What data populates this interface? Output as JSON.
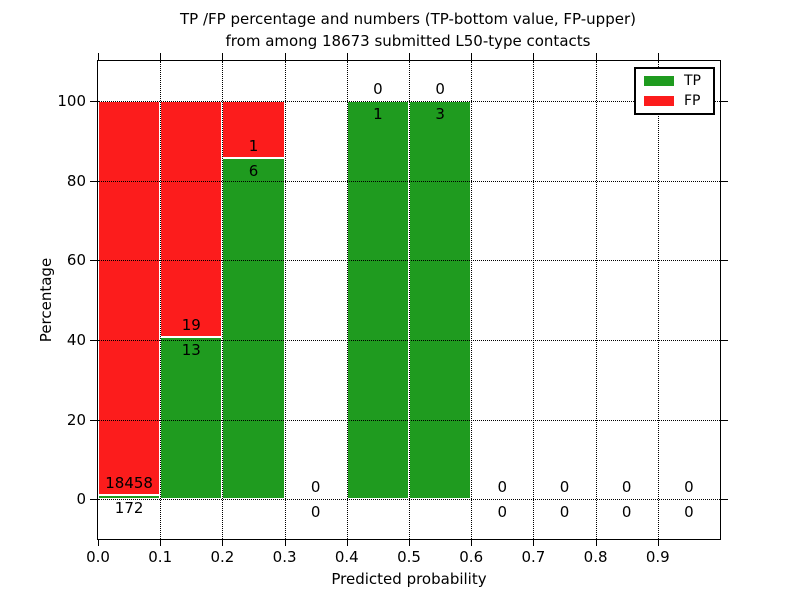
{
  "title": {
    "line1": "TP /FP percentage and numbers (TP-bottom value, FP-upper)",
    "line2": "from among 18673 submitted L50-type contacts"
  },
  "colors": {
    "tp": "#1f9b1f",
    "fp": "#fc1c1c",
    "grid": "#000000",
    "frame": "#000000",
    "background": "#ffffff"
  },
  "chart_data": {
    "type": "bar",
    "stacked": true,
    "normalized": "each non-empty bin stacked to 100%",
    "title": "TP /FP percentage and numbers (TP-bottom value, FP-upper) from among 18673 submitted L50-type contacts",
    "total_contacts": 18673,
    "xlabel": "Predicted probability",
    "ylabel": "Percentage",
    "xlim": [
      0.0,
      1.0
    ],
    "ylim": [
      -10,
      110
    ],
    "xticks": [
      0.0,
      0.1,
      0.2,
      0.3,
      0.4,
      0.5,
      0.6,
      0.7,
      0.8,
      0.9
    ],
    "yticks": [
      0,
      20,
      40,
      60,
      80,
      100
    ],
    "grid": "dotted, both axes, drawn over bars",
    "legend_position": "upper right",
    "legend": [
      {
        "name": "TP",
        "color": "#1f9b1f"
      },
      {
        "name": "FP",
        "color": "#fc1c1c"
      }
    ],
    "bins": [
      {
        "range": [
          0.0,
          0.1
        ],
        "tp": 172,
        "fp": 18458,
        "tp_pct": 0.92
      },
      {
        "range": [
          0.1,
          0.2
        ],
        "tp": 13,
        "fp": 19,
        "tp_pct": 40.63
      },
      {
        "range": [
          0.2,
          0.3
        ],
        "tp": 6,
        "fp": 1,
        "tp_pct": 85.71
      },
      {
        "range": [
          0.3,
          0.4
        ],
        "tp": 0,
        "fp": 0,
        "tp_pct": 0
      },
      {
        "range": [
          0.4,
          0.5
        ],
        "tp": 1,
        "fp": 0,
        "tp_pct": 100
      },
      {
        "range": [
          0.5,
          0.6
        ],
        "tp": 3,
        "fp": 0,
        "tp_pct": 100
      },
      {
        "range": [
          0.6,
          0.7
        ],
        "tp": 0,
        "fp": 0,
        "tp_pct": 0
      },
      {
        "range": [
          0.7,
          0.8
        ],
        "tp": 0,
        "fp": 0,
        "tp_pct": 0
      },
      {
        "range": [
          0.8,
          0.9
        ],
        "tp": 0,
        "fp": 0,
        "tp_pct": 0
      },
      {
        "range": [
          0.9,
          1.0
        ],
        "tp": 0,
        "fp": 0,
        "tp_pct": 0
      }
    ]
  }
}
